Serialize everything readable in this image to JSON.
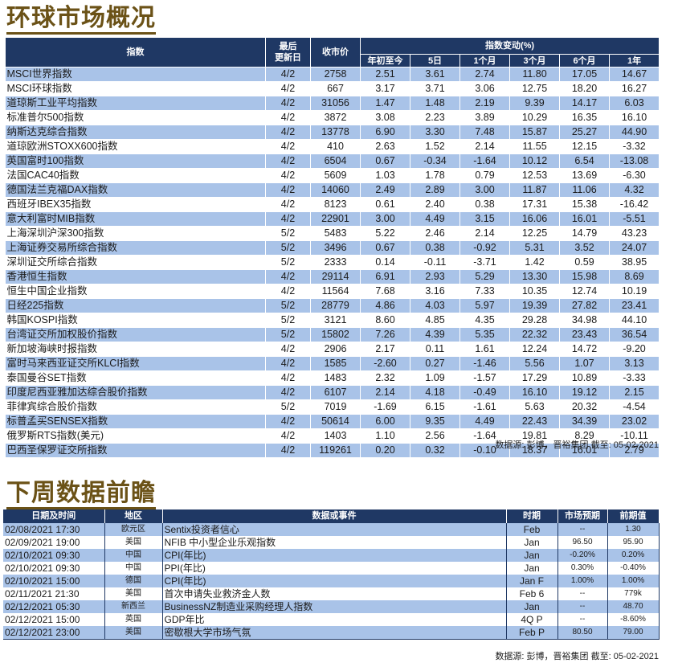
{
  "global_markets": {
    "title": "环球市场概况",
    "headers": {
      "index": "指数",
      "last_update": "最后\n更新日",
      "close": "收市价",
      "change_group": "指数变动(%)",
      "ytd": "年初至今",
      "d5": "5日",
      "m1": "1个月",
      "m3": "3个月",
      "m6": "6个月",
      "y1": "1年"
    },
    "rows": [
      [
        "MSCI世界指数",
        "4/2",
        "2758",
        "2.51",
        "3.61",
        "2.74",
        "11.80",
        "17.05",
        "14.67"
      ],
      [
        "MSCI环球指数",
        "4/2",
        "667",
        "3.17",
        "3.71",
        "3.06",
        "12.75",
        "18.20",
        "16.27"
      ],
      [
        "道琼斯工业平均指数",
        "4/2",
        "31056",
        "1.47",
        "1.48",
        "2.19",
        "9.39",
        "14.17",
        "6.03"
      ],
      [
        "标准普尔500指数",
        "4/2",
        "3872",
        "3.08",
        "2.23",
        "3.89",
        "10.29",
        "16.35",
        "16.10"
      ],
      [
        "纳斯达克综合指数",
        "4/2",
        "13778",
        "6.90",
        "3.30",
        "7.48",
        "15.87",
        "25.27",
        "44.90"
      ],
      [
        "道琼欧洲STOXX600指数",
        "4/2",
        "410",
        "2.63",
        "1.52",
        "2.14",
        "11.55",
        "12.15",
        "-3.32"
      ],
      [
        "英国富时100指数",
        "4/2",
        "6504",
        "0.67",
        "-0.34",
        "-1.64",
        "10.12",
        "6.54",
        "-13.08"
      ],
      [
        "法国CAC40指数",
        "4/2",
        "5609",
        "1.03",
        "1.78",
        "0.79",
        "12.53",
        "13.69",
        "-6.30"
      ],
      [
        "德国法兰克福DAX指数",
        "4/2",
        "14060",
        "2.49",
        "2.89",
        "3.00",
        "11.87",
        "11.06",
        "4.32"
      ],
      [
        "西班牙IBEX35指数",
        "4/2",
        "8123",
        "0.61",
        "2.40",
        "0.38",
        "17.31",
        "15.38",
        "-16.42"
      ],
      [
        "意大利富时MIB指数",
        "4/2",
        "22901",
        "3.00",
        "4.49",
        "3.15",
        "16.06",
        "16.01",
        "-5.51"
      ],
      [
        "上海深圳沪深300指数",
        "5/2",
        "5483",
        "5.22",
        "2.46",
        "2.14",
        "12.25",
        "14.79",
        "43.23"
      ],
      [
        "上海证券交易所综合指数",
        "5/2",
        "3496",
        "0.67",
        "0.38",
        "-0.92",
        "5.31",
        "3.52",
        "24.07"
      ],
      [
        "深圳证交所综合指数",
        "5/2",
        "2333",
        "0.14",
        "-0.11",
        "-3.71",
        "1.42",
        "0.59",
        "38.95"
      ],
      [
        "香港恒生指数",
        "4/2",
        "29114",
        "6.91",
        "2.93",
        "5.29",
        "13.30",
        "15.98",
        "8.69"
      ],
      [
        "恒生中国企业指数",
        "4/2",
        "11564",
        "7.68",
        "3.16",
        "7.33",
        "10.35",
        "12.74",
        "10.19"
      ],
      [
        "日经225指数",
        "5/2",
        "28779",
        "4.86",
        "4.03",
        "5.97",
        "19.39",
        "27.82",
        "23.41"
      ],
      [
        "韩国KOSPI指数",
        "5/2",
        "3121",
        "8.60",
        "4.85",
        "4.35",
        "29.28",
        "34.98",
        "44.10"
      ],
      [
        "台湾证交所加权股价指数",
        "5/2",
        "15802",
        "7.26",
        "4.39",
        "5.35",
        "22.32",
        "23.43",
        "36.54"
      ],
      [
        "新加坡海峡时报指数",
        "4/2",
        "2906",
        "2.17",
        "0.11",
        "1.61",
        "12.24",
        "14.72",
        "-9.20"
      ],
      [
        "富时马来西亚证交所KLCI指数",
        "4/2",
        "1585",
        "-2.60",
        "0.27",
        "-1.46",
        "5.56",
        "1.07",
        "3.13"
      ],
      [
        "泰国曼谷SET指数",
        "4/2",
        "1483",
        "2.32",
        "1.09",
        "-1.57",
        "17.29",
        "10.89",
        "-3.33"
      ],
      [
        "印度尼西亚雅加达综合股价指数",
        "4/2",
        "6107",
        "2.14",
        "4.18",
        "-0.49",
        "16.10",
        "19.12",
        "2.15"
      ],
      [
        "菲律宾综合股价指数",
        "5/2",
        "7019",
        "-1.69",
        "6.15",
        "-1.61",
        "5.63",
        "20.32",
        "-4.54"
      ],
      [
        "标普孟买SENSEX指数",
        "4/2",
        "50614",
        "6.00",
        "9.35",
        "4.49",
        "22.43",
        "34.39",
        "23.02"
      ],
      [
        "俄罗斯RTS指数(美元)",
        "4/2",
        "1403",
        "1.10",
        "2.56",
        "-1.64",
        "19.81",
        "8.29",
        "-10.11"
      ],
      [
        "巴西圣保罗证交所指数",
        "4/2",
        "119261",
        "0.20",
        "0.32",
        "-0.10",
        "18.37",
        "16.01",
        "2.79"
      ]
    ],
    "source": "数据源: 彭博，晋裕集团 截至: 05-02-2021"
  },
  "next_week": {
    "title": "下周数据前瞻",
    "headers": {
      "datetime": "日期及时间",
      "region": "地区",
      "event": "数据或事件",
      "period": "时期",
      "forecast": "市场预期",
      "previous": "前期值"
    },
    "rows": [
      [
        "02/08/2021 17:30",
        "欧元区",
        "Sentix投资者信心",
        "Feb",
        "--",
        "1.30"
      ],
      [
        "02/09/2021 19:00",
        "美国",
        "NFIB 中小型企业乐观指数",
        "Jan",
        "96.50",
        "95.90"
      ],
      [
        "02/10/2021 09:30",
        "中国",
        "CPI(年比)",
        "Jan",
        "-0.20%",
        "0.20%"
      ],
      [
        "02/10/2021 09:30",
        "中国",
        "PPI(年比)",
        "Jan",
        "0.30%",
        "-0.40%"
      ],
      [
        "02/10/2021 15:00",
        "德国",
        "CPI(年比)",
        "Jan F",
        "1.00%",
        "1.00%"
      ],
      [
        "02/11/2021 21:30",
        "美国",
        "首次申请失业救济金人数",
        "Feb 6",
        "--",
        "779k"
      ],
      [
        "02/12/2021 05:30",
        "新西兰",
        "BusinessNZ制造业采购经理人指数",
        "Jan",
        "--",
        "48.70"
      ],
      [
        "02/12/2021 15:00",
        "英国",
        "GDP年比",
        "4Q P",
        "--",
        "-8.60%"
      ],
      [
        "02/12/2021 23:00",
        "美国",
        "密歇根大学市场气氛",
        "Feb P",
        "80.50",
        "79.00"
      ]
    ],
    "source": "数据源: 彭博，晋裕集团 截至: 05-02-2021"
  },
  "colors": {
    "header_bg": "#1f3864",
    "stripe": "#a9c3e8",
    "title": "#6b5217"
  }
}
